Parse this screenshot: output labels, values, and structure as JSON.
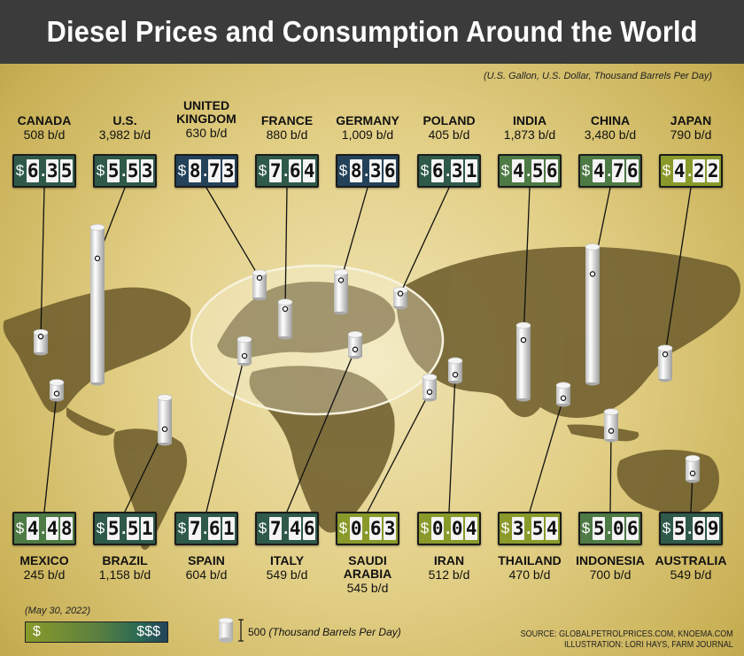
{
  "title": "Diesel Prices and Consumption Around the World",
  "units_note": "(U.S. Gallon, U.S. Dollar, Thousand Barrels Per Day)",
  "legend": {
    "date": "(May 30, 2022)",
    "low_label": "$",
    "high_label": "$$$",
    "cylinder_value": "500",
    "cylinder_unit": "(Thousand Barrels Per Day)"
  },
  "source": {
    "line1": "SOURCE: GLOBALPETROLPRICES.COM, KNOEMA.COM",
    "line2": "ILLUSTRATION: LORI HAYS, FARM JOURNAL"
  },
  "colors": {
    "title_bar": "#3b3b3b",
    "price_low": "#8a9a2a",
    "price_mid": "#4e7a45",
    "price_high": "#24425a",
    "cylinder": "#e8e8e8"
  },
  "chart_data": {
    "type": "bar",
    "categories": [
      "Canada",
      "U.S.",
      "United Kingdom",
      "France",
      "Germany",
      "Poland",
      "India",
      "China",
      "Japan",
      "Mexico",
      "Brazil",
      "Spain",
      "Italy",
      "Saudi Arabia",
      "Iran",
      "Thailand",
      "Indonesia",
      "Australia"
    ],
    "series": [
      {
        "name": "price",
        "values": [
          6.35,
          5.53,
          8.73,
          7.64,
          8.36,
          6.31,
          4.56,
          4.76,
          4.22,
          4.48,
          5.51,
          7.61,
          7.46,
          0.63,
          0.04,
          3.54,
          5.06,
          5.69
        ]
      },
      {
        "name": "consumption",
        "values": [
          508,
          3982,
          630,
          880,
          1009,
          405,
          1873,
          3480,
          790,
          245,
          1158,
          604,
          549,
          545,
          512,
          470,
          700,
          549
        ]
      }
    ],
    "countries": [
      {
        "name": "CANADA",
        "price": "6.35",
        "consumption": "508 b/d"
      },
      {
        "name": "U.S.",
        "price": "5.53",
        "consumption": "3,982 b/d"
      },
      {
        "name": "UNITED KINGDOM",
        "price": "8.73",
        "consumption": "630 b/d"
      },
      {
        "name": "FRANCE",
        "price": "7.64",
        "consumption": "880 b/d"
      },
      {
        "name": "GERMANY",
        "price": "8.36",
        "consumption": "1,009 b/d"
      },
      {
        "name": "POLAND",
        "price": "6.31",
        "consumption": "405 b/d"
      },
      {
        "name": "INDIA",
        "price": "4.56",
        "consumption": "1,873 b/d"
      },
      {
        "name": "CHINA",
        "price": "4.76",
        "consumption": "3,480 b/d"
      },
      {
        "name": "JAPAN",
        "price": "4.22",
        "consumption": "790 b/d"
      },
      {
        "name": "MEXICO",
        "price": "4.48",
        "consumption": "245 b/d"
      },
      {
        "name": "BRAZIL",
        "price": "5.51",
        "consumption": "1,158 b/d"
      },
      {
        "name": "SPAIN",
        "price": "7.61",
        "consumption": "604 b/d"
      },
      {
        "name": "ITALY",
        "price": "7.46",
        "consumption": "549 b/d"
      },
      {
        "name": "SAUDI ARABIA",
        "price": "0.63",
        "consumption": "545 b/d"
      },
      {
        "name": "IRAN",
        "price": "0.04",
        "consumption": "512 b/d"
      },
      {
        "name": "THAILAND",
        "price": "3.54",
        "consumption": "470 b/d"
      },
      {
        "name": "INDONESIA",
        "price": "5.06",
        "consumption": "700 b/d"
      },
      {
        "name": "AUSTRALIA",
        "price": "5.69",
        "consumption": "549 b/d"
      }
    ]
  }
}
